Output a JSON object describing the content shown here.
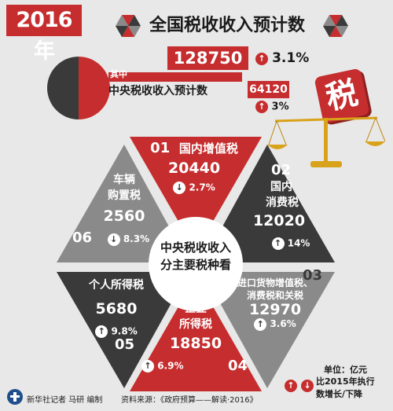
{
  "header": {
    "year": "2016年",
    "title": "全国税收收入预计数",
    "total_value": "128750",
    "total_growth": "3.1%",
    "subset_tag": "其中",
    "central_label": "中央税收收入预计数",
    "central_value": "64120",
    "central_growth": "3%",
    "tax_badge": "税"
  },
  "center": {
    "line1": "中央税收收入",
    "line2": "分主要税种看"
  },
  "segments": [
    {
      "index": "01",
      "name": "国内增值税",
      "value": "20440",
      "growth": "2.7%",
      "direction": "down"
    },
    {
      "index": "02",
      "name_line1": "国内",
      "name_line2": "消费税",
      "value": "12020",
      "growth": "14%",
      "direction": "up"
    },
    {
      "index": "03",
      "name_line1": "进口货物增值税、",
      "name_line2": "消费税和关税",
      "value": "12970",
      "growth": "3.6%",
      "direction": "up"
    },
    {
      "index": "04",
      "name_line1": "企业",
      "name_line2": "所得税",
      "value": "18850",
      "growth": "6.9%",
      "direction": "up"
    },
    {
      "index": "05",
      "name": "个人所得税",
      "value": "5680",
      "growth": "9.8%",
      "direction": "up"
    },
    {
      "index": "06",
      "name_line1": "车辆",
      "name_line2": "购置税",
      "value": "2560",
      "growth": "8.3%",
      "direction": "down"
    }
  ],
  "legend": {
    "unit": "单位：亿元",
    "line1": "比2015年执行",
    "line2": "数增长/下降"
  },
  "footer": {
    "agency": "新华社记者  马研  编制",
    "source": "资料来源：《政府预算——解读·2016》"
  },
  "colors": {
    "red": "#c62d2e",
    "dark": "#3a3a3a",
    "bg": "#e8e8e8"
  }
}
